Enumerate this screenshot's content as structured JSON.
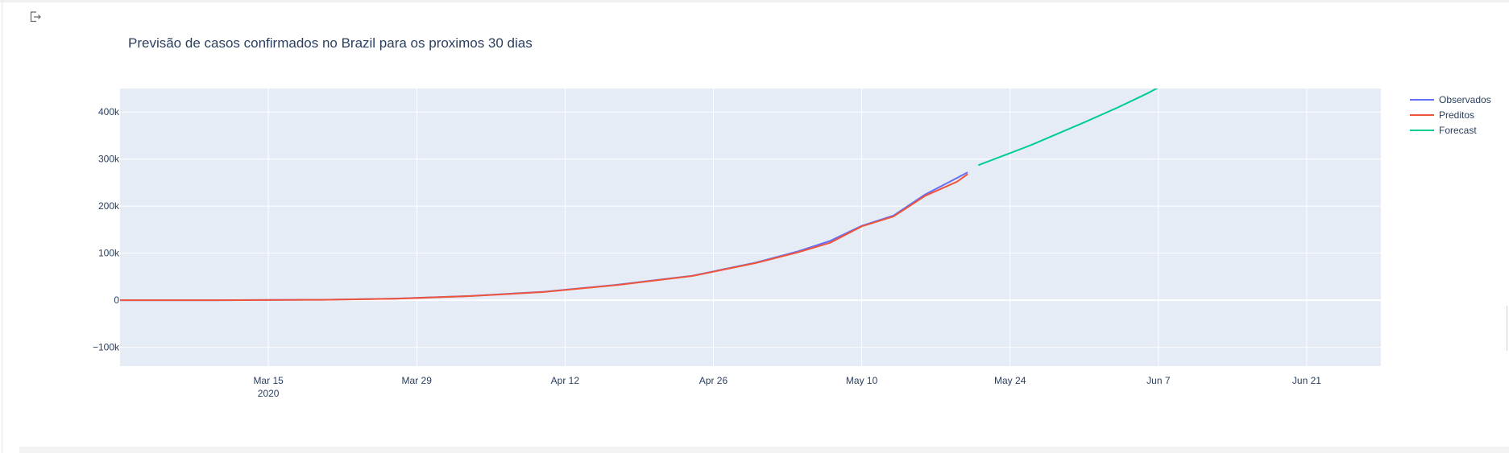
{
  "chart_data": {
    "type": "line",
    "title": "Previsão de casos confirmados no Brazil para os proximos 30 dias",
    "xlabel": "",
    "ylabel": "",
    "x_axis": {
      "type": "date",
      "range": [
        "2020-03-01",
        "2020-06-28"
      ],
      "ticks": [
        {
          "date": "2020-03-15",
          "label": "Mar 15",
          "sublabel": "2020"
        },
        {
          "date": "2020-03-29",
          "label": "Mar 29"
        },
        {
          "date": "2020-04-12",
          "label": "Apr 12"
        },
        {
          "date": "2020-04-26",
          "label": "Apr 26"
        },
        {
          "date": "2020-05-10",
          "label": "May 10"
        },
        {
          "date": "2020-05-24",
          "label": "May 24"
        },
        {
          "date": "2020-06-07",
          "label": "Jun 7"
        },
        {
          "date": "2020-06-21",
          "label": "Jun 21"
        }
      ]
    },
    "y_axis": {
      "range": [
        -140000,
        450000
      ],
      "ticks": [
        {
          "value": -100000,
          "label": "−100k"
        },
        {
          "value": 0,
          "label": "0"
        },
        {
          "value": 100000,
          "label": "100k"
        },
        {
          "value": 200000,
          "label": "200k"
        },
        {
          "value": 300000,
          "label": "300k"
        },
        {
          "value": 400000,
          "label": "400k"
        }
      ]
    },
    "grid": true,
    "legend_position": "top-right",
    "series": [
      {
        "name": "Observados",
        "color": "#636efa",
        "points": [
          [
            "2020-03-01",
            2
          ],
          [
            "2020-03-10",
            30
          ],
          [
            "2020-03-20",
            900
          ],
          [
            "2020-03-27",
            3400
          ],
          [
            "2020-04-03",
            9000
          ],
          [
            "2020-04-10",
            18000
          ],
          [
            "2020-04-17",
            33000
          ],
          [
            "2020-04-24",
            52000
          ],
          [
            "2020-04-30",
            80000
          ],
          [
            "2020-05-04",
            104000
          ],
          [
            "2020-05-07",
            126000
          ],
          [
            "2020-05-10",
            158000
          ],
          [
            "2020-05-13",
            180000
          ],
          [
            "2020-05-16",
            225000
          ],
          [
            "2020-05-19",
            260000
          ],
          [
            "2020-05-20",
            272000
          ]
        ]
      },
      {
        "name": "Preditos",
        "color": "#ef553b",
        "points": [
          [
            "2020-03-01",
            0
          ],
          [
            "2020-03-10",
            100
          ],
          [
            "2020-03-20",
            1000
          ],
          [
            "2020-03-27",
            3200
          ],
          [
            "2020-04-03",
            8800
          ],
          [
            "2020-04-10",
            17500
          ],
          [
            "2020-04-17",
            32500
          ],
          [
            "2020-04-24",
            51500
          ],
          [
            "2020-04-30",
            79000
          ],
          [
            "2020-05-04",
            102000
          ],
          [
            "2020-05-07",
            122000
          ],
          [
            "2020-05-10",
            157000
          ],
          [
            "2020-05-13",
            178000
          ],
          [
            "2020-05-16",
            222000
          ],
          [
            "2020-05-19",
            252000
          ],
          [
            "2020-05-20",
            268000
          ]
        ]
      },
      {
        "name": "Forecast",
        "color": "#00cc96",
        "points": [
          [
            "2020-05-21",
            287000
          ],
          [
            "2020-05-26",
            330000
          ],
          [
            "2020-05-31",
            378000
          ],
          [
            "2020-06-03",
            408000
          ],
          [
            "2020-06-06",
            440000
          ],
          [
            "2020-06-07",
            452000
          ]
        ]
      }
    ]
  },
  "colors": {
    "plot_bg": "#e5ecf6",
    "grid": "#ffffff",
    "text": "#2a3f5f"
  },
  "toolbar": {
    "export_icon": "export-icon"
  }
}
